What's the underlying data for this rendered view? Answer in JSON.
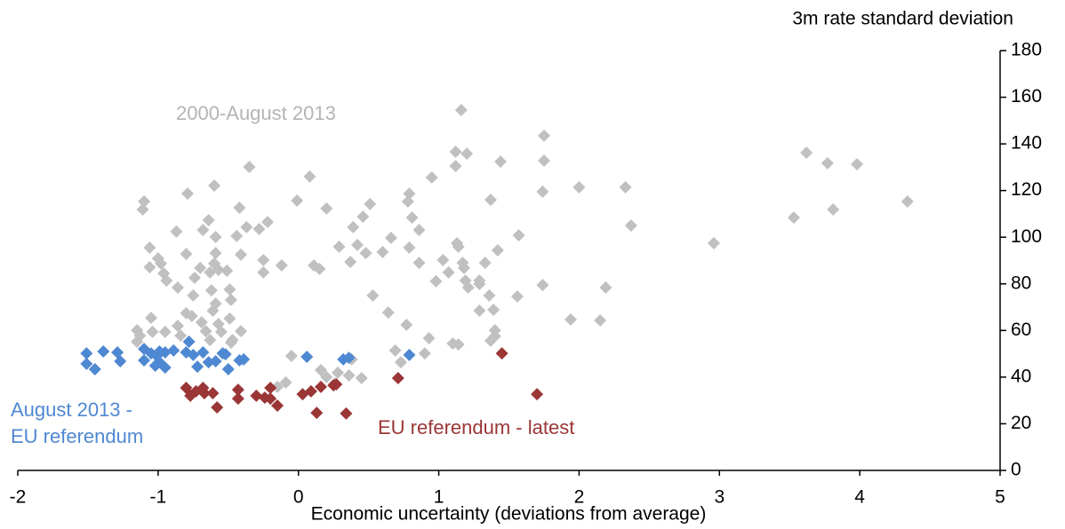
{
  "chart_data": {
    "type": "scatter",
    "y_label": "3m rate standard deviation",
    "x_label": "Economic uncertainty (deviations from average)",
    "xlim": [
      -2,
      5
    ],
    "xticks": [
      -2,
      -1,
      0,
      1,
      2,
      3,
      4,
      5
    ],
    "ylim": [
      0,
      180
    ],
    "yticks": [
      0,
      20,
      40,
      60,
      80,
      100,
      120,
      140,
      160,
      180
    ],
    "grid": false,
    "series": [
      {
        "name": "2000-August 2013",
        "color": "#c0c0c0",
        "x": [
          1.16,
          1.75,
          1.12,
          1.2,
          1.75,
          1.44,
          1.12,
          -0.35,
          0.08,
          0.95,
          -0.6,
          2.0,
          2.33,
          1.74,
          0.79,
          -0.79,
          1.37,
          -1.1,
          4.34,
          0.78,
          0.51,
          -1.11,
          0.2,
          -0.42,
          3.62,
          3.77,
          3.98,
          3.81,
          3.53,
          0.46,
          0.81,
          -0.01,
          -0.22,
          -0.64,
          -0.37,
          -0.28,
          2.37,
          0.39,
          0.86,
          -0.87,
          -0.68,
          -0.59,
          -0.44,
          0.66,
          1.13,
          1.14,
          1.57,
          0.42,
          0.29,
          0.79,
          -1.06,
          2.96,
          1.42,
          0.6,
          0.48,
          -0.59,
          -0.8,
          -0.41,
          -1.0,
          -0.25,
          1.03,
          0.37,
          0.86,
          -0.98,
          -1.06,
          -0.12,
          0.11,
          0.15,
          -0.6,
          -0.7,
          1.17,
          1.18,
          1.33,
          1.07,
          -0.25,
          -0.63,
          -0.57,
          -0.51,
          -0.96,
          -0.74,
          -0.94,
          1.19,
          1.29,
          0.98,
          1.21,
          1.29,
          1.74,
          2.19,
          -0.86,
          -0.49,
          -0.62,
          -0.75,
          -0.48,
          0.53,
          1.56,
          1.36,
          -0.59,
          -0.61,
          1.29,
          1.39,
          0.64,
          -0.8,
          -0.76,
          -1.05,
          1.94,
          2.15,
          -0.49,
          -0.69,
          -0.57,
          -0.86,
          0.77,
          -1.15,
          -1.04,
          -0.95,
          -1.13,
          -0.66,
          -0.55,
          -0.41,
          1.4,
          1.4,
          1.37,
          -0.84,
          0.93,
          1.1,
          1.14,
          -0.63,
          -0.47,
          -0.48,
          -1.15,
          0.69,
          0.9,
          -0.05,
          0.73,
          0.16,
          0.28,
          0.45,
          -0.09,
          -0.15,
          0.36,
          0.2,
          0.26,
          0.38
        ],
        "values": [
          154.5,
          143.5,
          136.6,
          135.8,
          132.8,
          132.4,
          130.5,
          130.1,
          126.0,
          125.6,
          122.1,
          121.4,
          121.4,
          119.5,
          118.7,
          118.7,
          116.0,
          115.3,
          115.3,
          115.3,
          114.2,
          111.9,
          112.3,
          112.6,
          136.2,
          131.7,
          131.3,
          111.9,
          108.4,
          108.8,
          108.4,
          115.7,
          106.5,
          107.3,
          104.3,
          103.5,
          105.0,
          104.3,
          103.1,
          102.4,
          103.1,
          100.1,
          100.5,
          99.7,
          97.4,
          95.9,
          100.8,
          96.7,
          95.9,
          95.5,
          95.5,
          97.4,
          94.4,
          93.6,
          93.2,
          93.2,
          92.8,
          92.5,
          90.9,
          90.2,
          90.2,
          89.4,
          89.0,
          88.7,
          87.1,
          87.9,
          87.9,
          86.4,
          88.7,
          86.8,
          89.0,
          86.8,
          89.0,
          84.9,
          84.9,
          84.9,
          86.0,
          85.6,
          84.5,
          82.6,
          81.4,
          81.4,
          81.4,
          81.1,
          78.4,
          79.9,
          79.5,
          78.4,
          78.4,
          77.6,
          77.2,
          75.0,
          73.1,
          75.0,
          74.6,
          75.0,
          71.5,
          68.5,
          68.5,
          68.9,
          67.7,
          67.4,
          66.2,
          65.4,
          64.7,
          64.3,
          65.1,
          63.5,
          62.8,
          62.0,
          62.4,
          60.1,
          59.4,
          59.4,
          57.8,
          59.7,
          59.4,
          59.7,
          60.1,
          57.5,
          55.6,
          57.8,
          56.7,
          54.4,
          54.0,
          55.9,
          55.9,
          54.8,
          55.2,
          51.4,
          50.2,
          49.1,
          46.4,
          43.0,
          41.9,
          39.6,
          37.7,
          35.8,
          40.7,
          40.0,
          37.3,
          47.6
        ]
      },
      {
        "name": "August 2013 - EU referendum",
        "color": "#4f88d2",
        "x": [
          -1.51,
          -1.51,
          -1.45,
          -1.39,
          -1.29,
          -1.27,
          -1.1,
          -1.1,
          -1.05,
          -1.02,
          -1.01,
          -0.99,
          -0.99,
          -0.95,
          -0.95,
          -0.89,
          -0.8,
          -0.75,
          -0.78,
          -0.72,
          -0.68,
          -0.64,
          -0.59,
          -0.54,
          -0.5,
          -0.52,
          -0.42,
          -0.39,
          0.06,
          0.32,
          0.36,
          0.79
        ],
        "values": [
          50.2,
          45.7,
          43.4,
          51.0,
          50.6,
          46.8,
          52.1,
          47.2,
          50.2,
          44.9,
          49.1,
          51.0,
          46.4,
          50.6,
          44.1,
          51.4,
          50.6,
          49.5,
          55.2,
          44.5,
          50.6,
          46.4,
          46.8,
          50.2,
          43.4,
          49.8,
          47.2,
          47.6,
          48.7,
          47.6,
          48.3,
          49.5
        ]
      },
      {
        "name": "EU referendum - latest",
        "color": "#9b3636",
        "x": [
          -0.8,
          -0.77,
          -0.73,
          -0.68,
          -0.67,
          -0.58,
          -0.61,
          -0.43,
          -0.43,
          -0.3,
          -0.24,
          -0.2,
          -0.2,
          -0.15,
          0.03,
          0.09,
          0.13,
          0.16,
          0.25,
          0.27,
          0.34,
          0.71,
          1.45,
          1.7
        ],
        "values": [
          35.4,
          32.0,
          33.9,
          35.4,
          33.1,
          27.0,
          33.1,
          34.6,
          30.8,
          32.0,
          31.2,
          35.4,
          30.8,
          27.8,
          32.7,
          33.9,
          24.7,
          35.8,
          36.5,
          36.9,
          24.4,
          39.6,
          50.2,
          32.7
        ]
      }
    ]
  }
}
